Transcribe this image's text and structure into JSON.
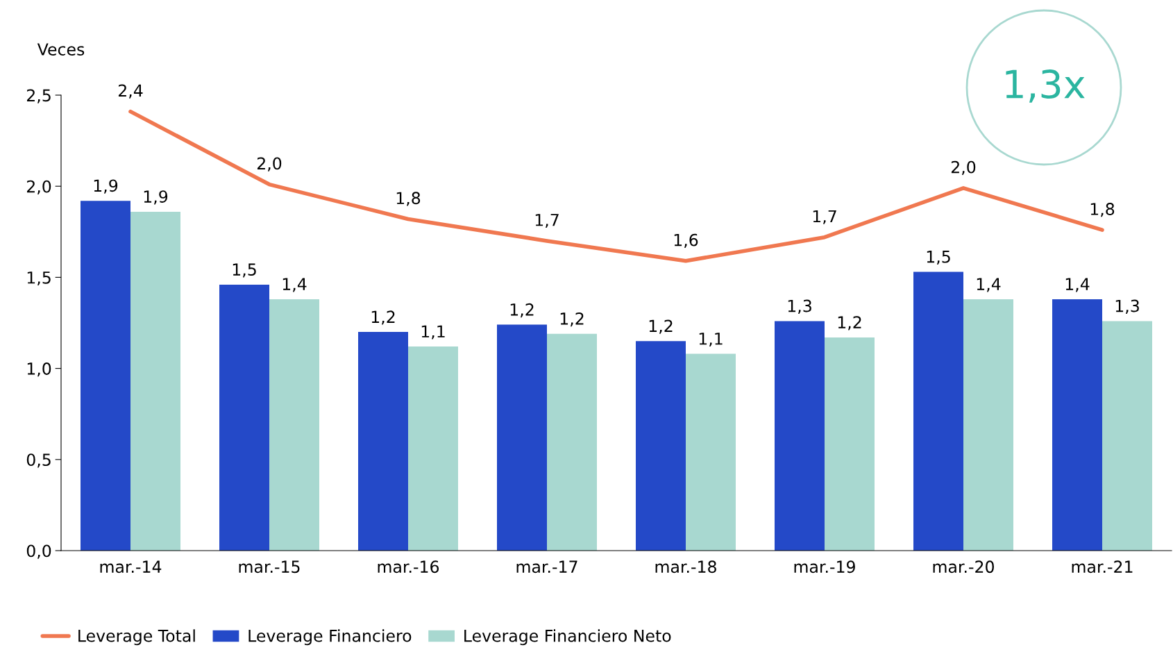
{
  "chart_data": {
    "type": "bar",
    "ylabel": "Veces",
    "categories": [
      "mar.-14",
      "mar.-15",
      "mar.-16",
      "mar.-17",
      "mar.-18",
      "mar.-19",
      "mar.-20",
      "mar.-21"
    ],
    "series": [
      {
        "name": "Leverage Total",
        "type": "line",
        "color": "#f07850",
        "values": [
          2.41,
          2.01,
          1.82,
          1.7,
          1.59,
          1.72,
          1.99,
          1.76
        ],
        "value_labels": [
          "2,4",
          "2,0",
          "1,8",
          "1,7",
          "1,6",
          "1,7",
          "2,0",
          "1,8"
        ]
      },
      {
        "name": "Leverage Financiero",
        "color": "#2449c8",
        "values": [
          1.92,
          1.46,
          1.2,
          1.24,
          1.15,
          1.26,
          1.53,
          1.38
        ],
        "value_labels": [
          "1,9",
          "1,5",
          "1,2",
          "1,2",
          "1,2",
          "1,3",
          "1,5",
          "1,4"
        ]
      },
      {
        "name": "Leverage Financiero Neto",
        "color": "#a8d8d0",
        "values": [
          1.86,
          1.38,
          1.12,
          1.19,
          1.08,
          1.17,
          1.38,
          1.26
        ],
        "value_labels": [
          "1,9",
          "1,4",
          "1,1",
          "1,2",
          "1,1",
          "1,2",
          "1,4",
          "1,3"
        ]
      }
    ],
    "ylim": [
      0,
      2.5
    ],
    "yticks": [
      {
        "value": 0,
        "label": "0,0"
      },
      {
        "value": 0.5,
        "label": "0,5"
      },
      {
        "value": 1,
        "label": "1,0"
      },
      {
        "value": 1.5,
        "label": "1,5"
      },
      {
        "value": 2,
        "label": "2,0"
      },
      {
        "value": 2.5,
        "label": "2,5"
      }
    ],
    "grid": false,
    "legend": "bottom",
    "annotations": [
      "1,3x"
    ]
  }
}
